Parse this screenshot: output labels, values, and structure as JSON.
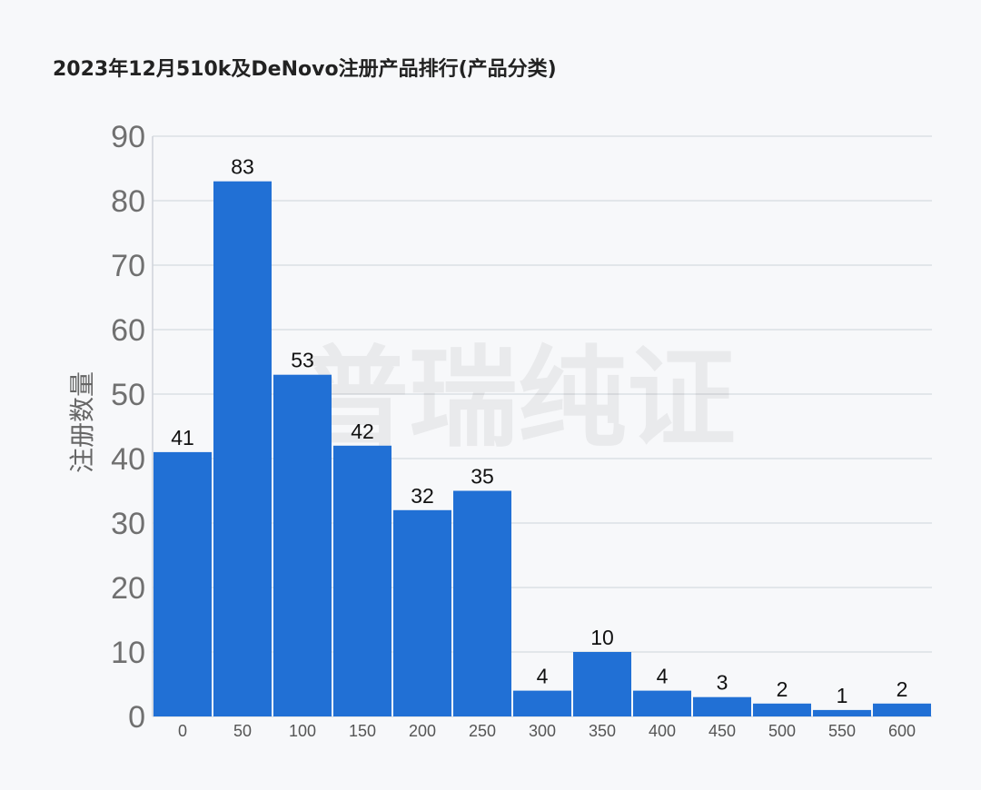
{
  "chart_data": {
    "type": "bar",
    "title": "2023年12月510k及DeNovo注册产品排行(产品分类)",
    "ylabel": "注册数量",
    "xlabel": "",
    "categories": [
      "0",
      "50",
      "100",
      "150",
      "200",
      "250",
      "300",
      "350",
      "400",
      "450",
      "500",
      "550",
      "600"
    ],
    "values": [
      41,
      83,
      53,
      42,
      32,
      35,
      4,
      10,
      4,
      3,
      2,
      1,
      2
    ],
    "ylim": [
      0,
      90
    ],
    "yticks": [
      0,
      10,
      20,
      30,
      40,
      50,
      60,
      70,
      80,
      90
    ],
    "grid": true,
    "bar_color": "#2170d5",
    "watermark": "普瑞纯证"
  }
}
